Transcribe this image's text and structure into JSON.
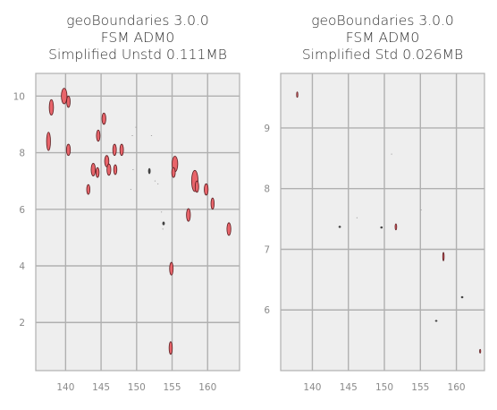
{
  "chart_data": [
    {
      "type": "map",
      "title_lines": [
        "geoBoundaries 3.0.0",
        "FSM ADM0",
        "Simplified Unstd 0.111MB"
      ],
      "xlim": [
        135.8,
        164.5
      ],
      "ylim": [
        0.3,
        10.8
      ],
      "xticks": [
        140,
        145,
        150,
        155,
        160
      ],
      "yticks": [
        2,
        4,
        6,
        8,
        10
      ],
      "grid": true,
      "fill_color": "#e8646a",
      "edge_color": "#5a1f22",
      "features": [
        {
          "x": 139.8,
          "y": 10.0,
          "w": 0.8,
          "h": 0.55,
          "kind": "island"
        },
        {
          "x": 140.4,
          "y": 9.8,
          "w": 0.5,
          "h": 0.4,
          "kind": "island"
        },
        {
          "x": 138.0,
          "y": 9.6,
          "w": 0.6,
          "h": 0.55,
          "kind": "island"
        },
        {
          "x": 137.6,
          "y": 8.4,
          "w": 0.55,
          "h": 0.65,
          "kind": "island"
        },
        {
          "x": 140.4,
          "y": 8.1,
          "w": 0.55,
          "h": 0.4,
          "kind": "island"
        },
        {
          "x": 145.4,
          "y": 9.2,
          "w": 0.55,
          "h": 0.4,
          "kind": "island"
        },
        {
          "x": 144.6,
          "y": 8.6,
          "w": 0.5,
          "h": 0.4,
          "kind": "island"
        },
        {
          "x": 143.9,
          "y": 7.4,
          "w": 0.6,
          "h": 0.45,
          "kind": "island"
        },
        {
          "x": 144.5,
          "y": 7.3,
          "w": 0.45,
          "h": 0.35,
          "kind": "island"
        },
        {
          "x": 145.8,
          "y": 7.7,
          "w": 0.6,
          "h": 0.4,
          "kind": "island"
        },
        {
          "x": 146.1,
          "y": 7.4,
          "w": 0.55,
          "h": 0.4,
          "kind": "island"
        },
        {
          "x": 146.9,
          "y": 8.1,
          "w": 0.5,
          "h": 0.4,
          "kind": "island"
        },
        {
          "x": 147.9,
          "y": 8.1,
          "w": 0.5,
          "h": 0.4,
          "kind": "island"
        },
        {
          "x": 147.0,
          "y": 7.4,
          "w": 0.45,
          "h": 0.35,
          "kind": "island"
        },
        {
          "x": 143.2,
          "y": 6.7,
          "w": 0.45,
          "h": 0.35,
          "kind": "island"
        },
        {
          "x": 155.4,
          "y": 7.6,
          "w": 0.8,
          "h": 0.55,
          "kind": "island"
        },
        {
          "x": 155.2,
          "y": 7.3,
          "w": 0.5,
          "h": 0.35,
          "kind": "island"
        },
        {
          "x": 158.2,
          "y": 7.0,
          "w": 0.9,
          "h": 0.75,
          "kind": "island"
        },
        {
          "x": 158.5,
          "y": 6.8,
          "w": 0.5,
          "h": 0.4,
          "kind": "island"
        },
        {
          "x": 159.8,
          "y": 6.7,
          "w": 0.55,
          "h": 0.4,
          "kind": "island"
        },
        {
          "x": 160.7,
          "y": 6.2,
          "w": 0.45,
          "h": 0.4,
          "kind": "island"
        },
        {
          "x": 157.3,
          "y": 5.8,
          "w": 0.55,
          "h": 0.45,
          "kind": "island"
        },
        {
          "x": 163.0,
          "y": 5.3,
          "w": 0.55,
          "h": 0.45,
          "kind": "island"
        },
        {
          "x": 154.9,
          "y": 3.9,
          "w": 0.5,
          "h": 0.45,
          "kind": "island"
        },
        {
          "x": 154.8,
          "y": 1.1,
          "w": 0.45,
          "h": 0.45,
          "kind": "island"
        },
        {
          "x": 151.8,
          "y": 7.35,
          "w": 0.3,
          "h": 0.2,
          "kind": "dot"
        },
        {
          "x": 153.8,
          "y": 5.5,
          "w": 0.2,
          "h": 0.12,
          "kind": "dot"
        },
        {
          "x": 149.4,
          "y": 8.6,
          "w": 0.1,
          "h": 0.06,
          "kind": "speck"
        },
        {
          "x": 149.9,
          "y": 8.9,
          "w": 0.1,
          "h": 0.06,
          "kind": "speck"
        },
        {
          "x": 152.1,
          "y": 8.6,
          "w": 0.1,
          "h": 0.06,
          "kind": "speck"
        },
        {
          "x": 149.5,
          "y": 7.4,
          "w": 0.1,
          "h": 0.06,
          "kind": "speck"
        },
        {
          "x": 152.6,
          "y": 7.0,
          "w": 0.1,
          "h": 0.06,
          "kind": "speck"
        },
        {
          "x": 153.0,
          "y": 6.9,
          "w": 0.1,
          "h": 0.06,
          "kind": "speck"
        },
        {
          "x": 149.2,
          "y": 6.7,
          "w": 0.1,
          "h": 0.06,
          "kind": "speck"
        },
        {
          "x": 153.5,
          "y": 5.9,
          "w": 0.1,
          "h": 0.06,
          "kind": "speck"
        },
        {
          "x": 153.7,
          "y": 5.3,
          "w": 0.1,
          "h": 0.06,
          "kind": "speck"
        }
      ]
    },
    {
      "type": "map",
      "title_lines": [
        "geoBoundaries 3.0.0",
        "FSM ADM0",
        "Simplified Std 0.026MB"
      ],
      "xlim": [
        135.6,
        163.9
      ],
      "ylim": [
        5.0,
        9.9
      ],
      "xticks": [
        140,
        145,
        150,
        155,
        160
      ],
      "yticks": [
        6,
        7,
        8,
        9
      ],
      "grid": true,
      "fill_color": "#e8646a",
      "edge_color": "#5a1f22",
      "features": [
        {
          "x": 137.9,
          "y": 9.55,
          "w": 0.18,
          "h": 0.09,
          "kind": "island"
        },
        {
          "x": 151.6,
          "y": 7.37,
          "w": 0.22,
          "h": 0.1,
          "kind": "island"
        },
        {
          "x": 158.2,
          "y": 6.88,
          "w": 0.2,
          "h": 0.14,
          "kind": "island"
        },
        {
          "x": 163.3,
          "y": 5.32,
          "w": 0.16,
          "h": 0.06,
          "kind": "island"
        },
        {
          "x": 143.8,
          "y": 7.37,
          "w": 0.2,
          "h": 0.03,
          "kind": "dot"
        },
        {
          "x": 149.6,
          "y": 7.36,
          "w": 0.2,
          "h": 0.03,
          "kind": "dot"
        },
        {
          "x": 160.8,
          "y": 6.21,
          "w": 0.15,
          "h": 0.03,
          "kind": "dot"
        },
        {
          "x": 157.2,
          "y": 5.82,
          "w": 0.15,
          "h": 0.02,
          "kind": "dot"
        },
        {
          "x": 146.2,
          "y": 7.52,
          "w": 0.12,
          "h": 0.02,
          "kind": "speck"
        },
        {
          "x": 151.0,
          "y": 8.57,
          "w": 0.12,
          "h": 0.02,
          "kind": "speck"
        },
        {
          "x": 155.1,
          "y": 7.65,
          "w": 0.12,
          "h": 0.02,
          "kind": "speck"
        }
      ]
    }
  ]
}
